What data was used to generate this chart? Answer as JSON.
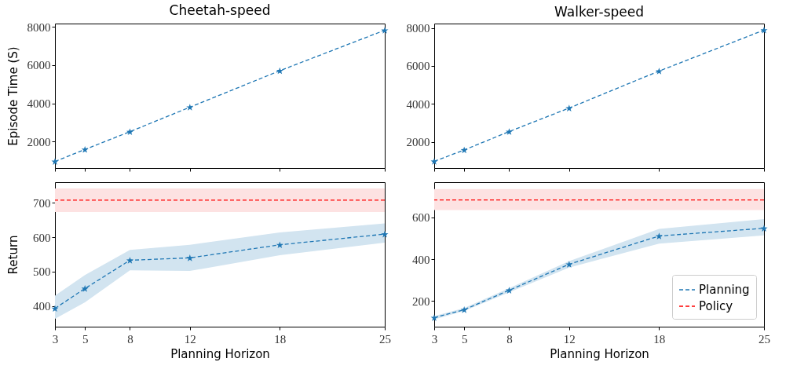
{
  "chart_data": [
    {
      "type": "line",
      "title": "Cheetah-speed",
      "ylabel": "Episode Time (S)",
      "x": [
        3,
        5,
        8,
        12,
        18,
        25
      ],
      "xlim": [
        3,
        25
      ],
      "xticks": [
        3,
        5,
        8,
        12,
        18,
        25
      ],
      "ylim": [
        616,
        8178
      ],
      "yticks": [
        2000,
        4000,
        6000,
        8000
      ],
      "tick_labels": "y",
      "marker": "star",
      "line_style": "dashed",
      "series": [
        {
          "color": "#1f77b4",
          "values": [
            960,
            1590,
            2520,
            3800,
            5710,
            7830
          ]
        }
      ]
    },
    {
      "type": "line",
      "title": "Walker-speed",
      "x": [
        3,
        5,
        8,
        12,
        18,
        25
      ],
      "xlim": [
        3,
        25
      ],
      "xticks": [
        3,
        5,
        8,
        12,
        18,
        25
      ],
      "ylim": [
        616,
        8235
      ],
      "yticks": [
        2000,
        4000,
        6000,
        8000
      ],
      "tick_labels": "y",
      "marker": "star",
      "line_style": "dashed",
      "series": [
        {
          "color": "#1f77b4",
          "values": [
            970,
            1570,
            2540,
            3780,
            5730,
            7890
          ]
        }
      ]
    },
    {
      "type": "line",
      "xlabel": "Planning Horizon",
      "ylabel": "Return",
      "x": [
        3,
        5,
        8,
        12,
        18,
        25
      ],
      "xlim": [
        3,
        25
      ],
      "xticks": [
        3,
        5,
        8,
        12,
        18,
        25
      ],
      "ylim": [
        340,
        760
      ],
      "yticks": [
        400,
        500,
        600,
        700
      ],
      "marker": "star",
      "line_style": "dashed",
      "series": [
        {
          "color": "#1f77b4",
          "values": [
            393,
            451,
            533,
            540,
            578,
            609
          ],
          "lower": [
            363,
            411,
            504,
            502,
            548,
            584
          ],
          "upper": [
            430,
            490,
            563,
            578,
            614,
            640
          ]
        }
      ],
      "ref_lines": [
        {
          "axis": "y",
          "value": 708,
          "color": "#ff0000",
          "line_style": "dashed"
        }
      ],
      "bands": [
        {
          "axis": "y",
          "from": 673,
          "to": 742,
          "color": "#fde2e2"
        }
      ]
    },
    {
      "type": "line",
      "xlabel": "Planning Horizon",
      "x": [
        3,
        5,
        8,
        12,
        18,
        25
      ],
      "xlim": [
        3,
        25
      ],
      "xticks": [
        3,
        5,
        8,
        12,
        18,
        25
      ],
      "ylim": [
        78,
        768
      ],
      "yticks": [
        200,
        400,
        600
      ],
      "marker": "star",
      "line_style": "dashed",
      "legend": "bottom right",
      "series": [
        {
          "name": "Planning",
          "color": "#1f77b4",
          "values": [
            121,
            159,
            252,
            376,
            511,
            548
          ],
          "lower": [
            113,
            153,
            242,
            360,
            475,
            514
          ],
          "upper": [
            129,
            167,
            262,
            391,
            545,
            592
          ]
        }
      ],
      "ref_lines": [
        {
          "axis": "y",
          "value": 683,
          "label": "Policy",
          "color": "#ff0000",
          "line_style": "dashed"
        }
      ],
      "bands": [
        {
          "axis": "y",
          "from": 635,
          "to": 735,
          "color": "#fde2e2"
        }
      ]
    }
  ]
}
